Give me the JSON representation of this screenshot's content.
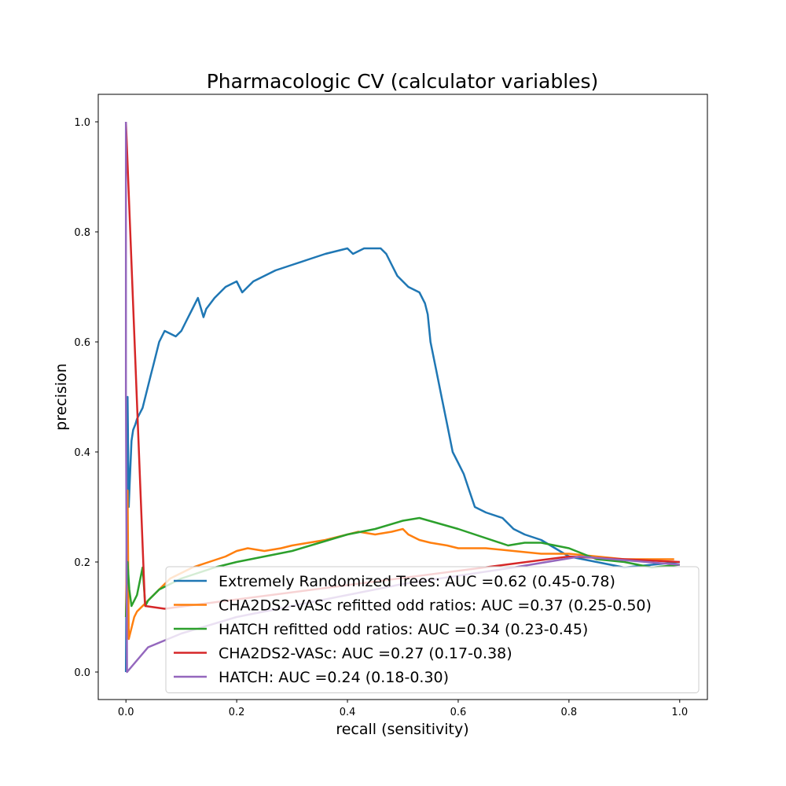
{
  "chart_data": {
    "type": "line",
    "title": "Pharmacologic CV (calculator variables)",
    "xlabel": "recall (sensitivity)",
    "ylabel": "precision",
    "xlim": [
      -0.05,
      1.05
    ],
    "ylim": [
      -0.05,
      1.05
    ],
    "xticks": [
      0.0,
      0.2,
      0.4,
      0.6,
      0.8,
      1.0
    ],
    "yticks": [
      0.0,
      0.2,
      0.4,
      0.6,
      0.8,
      1.0
    ],
    "xtick_labels": [
      "0.0",
      "0.2",
      "0.4",
      "0.6",
      "0.8",
      "1.0"
    ],
    "ytick_labels": [
      "0.0",
      "0.2",
      "0.4",
      "0.6",
      "0.8",
      "1.0"
    ],
    "grid": false,
    "legend_position": "lower-right",
    "series": [
      {
        "name": "Extremely Randomized Trees: AUC =0.62 (0.45-0.78)",
        "color": "#1f77b4",
        "x": [
          0.0,
          0.003,
          0.005,
          0.007,
          0.01,
          0.013,
          0.017,
          0.02,
          0.025,
          0.03,
          0.035,
          0.04,
          0.045,
          0.05,
          0.055,
          0.06,
          0.07,
          0.08,
          0.09,
          0.1,
          0.105,
          0.11,
          0.12,
          0.13,
          0.14,
          0.145,
          0.16,
          0.18,
          0.2,
          0.21,
          0.22,
          0.23,
          0.25,
          0.27,
          0.3,
          0.33,
          0.36,
          0.4,
          0.41,
          0.43,
          0.46,
          0.47,
          0.48,
          0.49,
          0.5,
          0.51,
          0.53,
          0.54,
          0.545,
          0.55,
          0.56,
          0.57,
          0.58,
          0.59,
          0.6,
          0.61,
          0.62,
          0.63,
          0.65,
          0.68,
          0.7,
          0.72,
          0.75,
          0.8,
          0.85,
          0.9,
          0.95,
          1.0
        ],
        "y": [
          0.0,
          0.5,
          0.3,
          0.35,
          0.42,
          0.44,
          0.45,
          0.46,
          0.47,
          0.48,
          0.5,
          0.52,
          0.54,
          0.56,
          0.58,
          0.6,
          0.62,
          0.615,
          0.61,
          0.62,
          0.63,
          0.64,
          0.66,
          0.68,
          0.645,
          0.66,
          0.68,
          0.7,
          0.71,
          0.69,
          0.7,
          0.71,
          0.72,
          0.73,
          0.74,
          0.75,
          0.76,
          0.77,
          0.76,
          0.77,
          0.77,
          0.76,
          0.74,
          0.72,
          0.71,
          0.7,
          0.69,
          0.67,
          0.65,
          0.6,
          0.55,
          0.5,
          0.45,
          0.4,
          0.38,
          0.36,
          0.33,
          0.3,
          0.29,
          0.28,
          0.26,
          0.25,
          0.24,
          0.21,
          0.2,
          0.19,
          0.195,
          0.2
        ]
      },
      {
        "name": "CHA2DS2-VASc refitted odd ratios: AUC =0.37 (0.25-0.50)",
        "color": "#ff7f0e",
        "x": [
          0.0,
          0.003,
          0.005,
          0.01,
          0.015,
          0.02,
          0.03,
          0.04,
          0.06,
          0.08,
          0.1,
          0.12,
          0.15,
          0.18,
          0.2,
          0.22,
          0.25,
          0.28,
          0.3,
          0.33,
          0.36,
          0.4,
          0.42,
          0.45,
          0.48,
          0.5,
          0.51,
          0.53,
          0.55,
          0.58,
          0.6,
          0.65,
          0.7,
          0.75,
          0.8,
          0.85,
          0.9,
          0.95,
          0.99
        ],
        "y": [
          0.1,
          0.33,
          0.06,
          0.08,
          0.1,
          0.11,
          0.12,
          0.13,
          0.15,
          0.17,
          0.18,
          0.19,
          0.2,
          0.21,
          0.22,
          0.225,
          0.22,
          0.225,
          0.23,
          0.235,
          0.24,
          0.25,
          0.255,
          0.25,
          0.255,
          0.26,
          0.25,
          0.24,
          0.235,
          0.23,
          0.225,
          0.225,
          0.22,
          0.215,
          0.215,
          0.21,
          0.205,
          0.205,
          0.205
        ]
      },
      {
        "name": "HATCH refitted odd ratios: AUC =0.34 (0.23-0.45)",
        "color": "#2ca02c",
        "x": [
          0.0,
          0.003,
          0.006,
          0.01,
          0.015,
          0.02,
          0.03,
          0.035,
          0.04,
          0.05,
          0.06,
          0.08,
          0.1,
          0.13,
          0.16,
          0.2,
          0.25,
          0.3,
          0.35,
          0.4,
          0.45,
          0.5,
          0.53,
          0.6,
          0.69,
          0.72,
          0.75,
          0.8,
          0.85,
          0.9,
          0.95,
          1.0
        ],
        "y": [
          0.1,
          0.2,
          0.15,
          0.12,
          0.13,
          0.14,
          0.19,
          0.12,
          0.13,
          0.14,
          0.15,
          0.16,
          0.17,
          0.18,
          0.19,
          0.2,
          0.21,
          0.22,
          0.235,
          0.25,
          0.26,
          0.275,
          0.28,
          0.26,
          0.23,
          0.235,
          0.235,
          0.225,
          0.205,
          0.2,
          0.19,
          0.195
        ]
      },
      {
        "name": "CHA2DS2-VASc: AUC =0.27 (0.17-0.38)",
        "color": "#d62728",
        "x": [
          0.0,
          0.034,
          0.035,
          0.07,
          0.8,
          1.0
        ],
        "y": [
          1.0,
          0.13,
          0.12,
          0.115,
          0.21,
          0.2
        ]
      },
      {
        "name": "HATCH: AUC =0.24 (0.18-0.30)",
        "color": "#9467bd",
        "x": [
          0.0,
          0.0,
          0.002,
          0.04,
          0.1,
          0.2,
          0.3,
          0.5,
          0.7,
          0.82,
          1.0
        ],
        "y": [
          1.0,
          0.5,
          0.0,
          0.045,
          0.07,
          0.1,
          0.12,
          0.16,
          0.19,
          0.21,
          0.195
        ]
      }
    ]
  }
}
